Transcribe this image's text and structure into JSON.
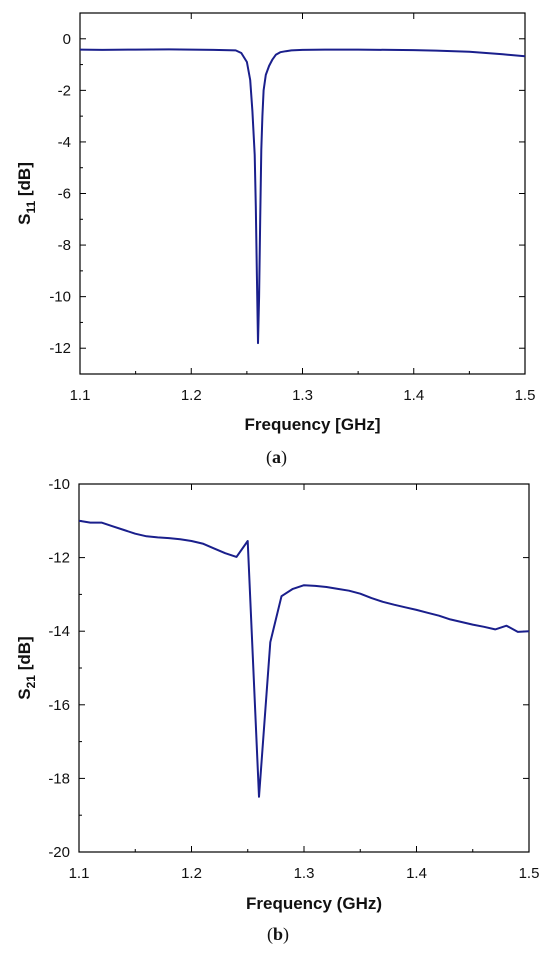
{
  "chart_data": [
    {
      "type": "line",
      "caption": "a",
      "xlabel": "Frequency [GHz]",
      "ylabel_main": "S",
      "ylabel_sub": "11",
      "ylabel_unit": " [dB]",
      "xlim": [
        1.1,
        1.5
      ],
      "ylim": [
        -13,
        1
      ],
      "xticks": [
        1.1,
        1.2,
        1.3,
        1.4,
        1.5
      ],
      "xtick_labels": [
        "1.1",
        "1.2",
        "1.3",
        "1.4",
        "1.5"
      ],
      "yticks": [
        0,
        -2,
        -4,
        -6,
        -8,
        -10,
        -12
      ],
      "ytick_labels": [
        "0",
        "-2",
        "-4",
        "-6",
        "-8",
        "-10",
        "-12"
      ],
      "grid": false,
      "line_color": "#1a1f8c",
      "series": [
        {
          "x": [
            1.1,
            1.12,
            1.15,
            1.18,
            1.2,
            1.22,
            1.24,
            1.245,
            1.25,
            1.253,
            1.255,
            1.257,
            1.258,
            1.259,
            1.26,
            1.261,
            1.262,
            1.263,
            1.264,
            1.265,
            1.267,
            1.27,
            1.273,
            1.276,
            1.28,
            1.285,
            1.29,
            1.3,
            1.32,
            1.35,
            1.38,
            1.4,
            1.42,
            1.45,
            1.48,
            1.5
          ],
          "y": [
            -0.42,
            -0.43,
            -0.42,
            -0.41,
            -0.42,
            -0.43,
            -0.45,
            -0.55,
            -0.9,
            -1.6,
            -2.8,
            -4.5,
            -6.5,
            -9.2,
            -11.8,
            -10.0,
            -7.0,
            -4.3,
            -3.0,
            -2.0,
            -1.4,
            -1.05,
            -0.8,
            -0.62,
            -0.52,
            -0.48,
            -0.45,
            -0.43,
            -0.42,
            -0.42,
            -0.43,
            -0.44,
            -0.46,
            -0.5,
            -0.6,
            -0.68
          ]
        }
      ]
    },
    {
      "type": "line",
      "caption": "b",
      "xlabel": "Frequency (GHz)",
      "ylabel_main": "S",
      "ylabel_sub": "21",
      "ylabel_unit": " [dB]",
      "xlim": [
        1.1,
        1.5
      ],
      "ylim": [
        -20,
        -10
      ],
      "xticks": [
        1.1,
        1.2,
        1.3,
        1.4,
        1.5
      ],
      "xtick_labels": [
        "1.1",
        "1.2",
        "1.3",
        "1.4",
        "1.5"
      ],
      "yticks": [
        -10,
        -12,
        -14,
        -16,
        -18,
        -20
      ],
      "ytick_labels": [
        "-10",
        "-12",
        "-14",
        "-16",
        "-18",
        "-20"
      ],
      "grid": false,
      "line_color": "#1a1f8c",
      "series": [
        {
          "x": [
            1.1,
            1.11,
            1.12,
            1.13,
            1.14,
            1.15,
            1.16,
            1.17,
            1.18,
            1.19,
            1.2,
            1.21,
            1.22,
            1.23,
            1.24,
            1.25,
            1.26,
            1.27,
            1.28,
            1.29,
            1.3,
            1.31,
            1.32,
            1.33,
            1.34,
            1.35,
            1.36,
            1.37,
            1.38,
            1.39,
            1.4,
            1.41,
            1.42,
            1.43,
            1.44,
            1.45,
            1.46,
            1.47,
            1.48,
            1.49,
            1.5
          ],
          "y": [
            -11.0,
            -11.05,
            -11.05,
            -11.15,
            -11.25,
            -11.35,
            -11.42,
            -11.45,
            -11.47,
            -11.5,
            -11.55,
            -11.62,
            -11.75,
            -11.88,
            -11.98,
            -11.55,
            -18.5,
            -14.3,
            -13.05,
            -12.85,
            -12.75,
            -12.77,
            -12.8,
            -12.85,
            -12.9,
            -12.98,
            -13.1,
            -13.2,
            -13.28,
            -13.35,
            -13.42,
            -13.5,
            -13.58,
            -13.68,
            -13.75,
            -13.82,
            -13.88,
            -13.95,
            -13.85,
            -14.02,
            -14.0
          ]
        }
      ]
    }
  ]
}
